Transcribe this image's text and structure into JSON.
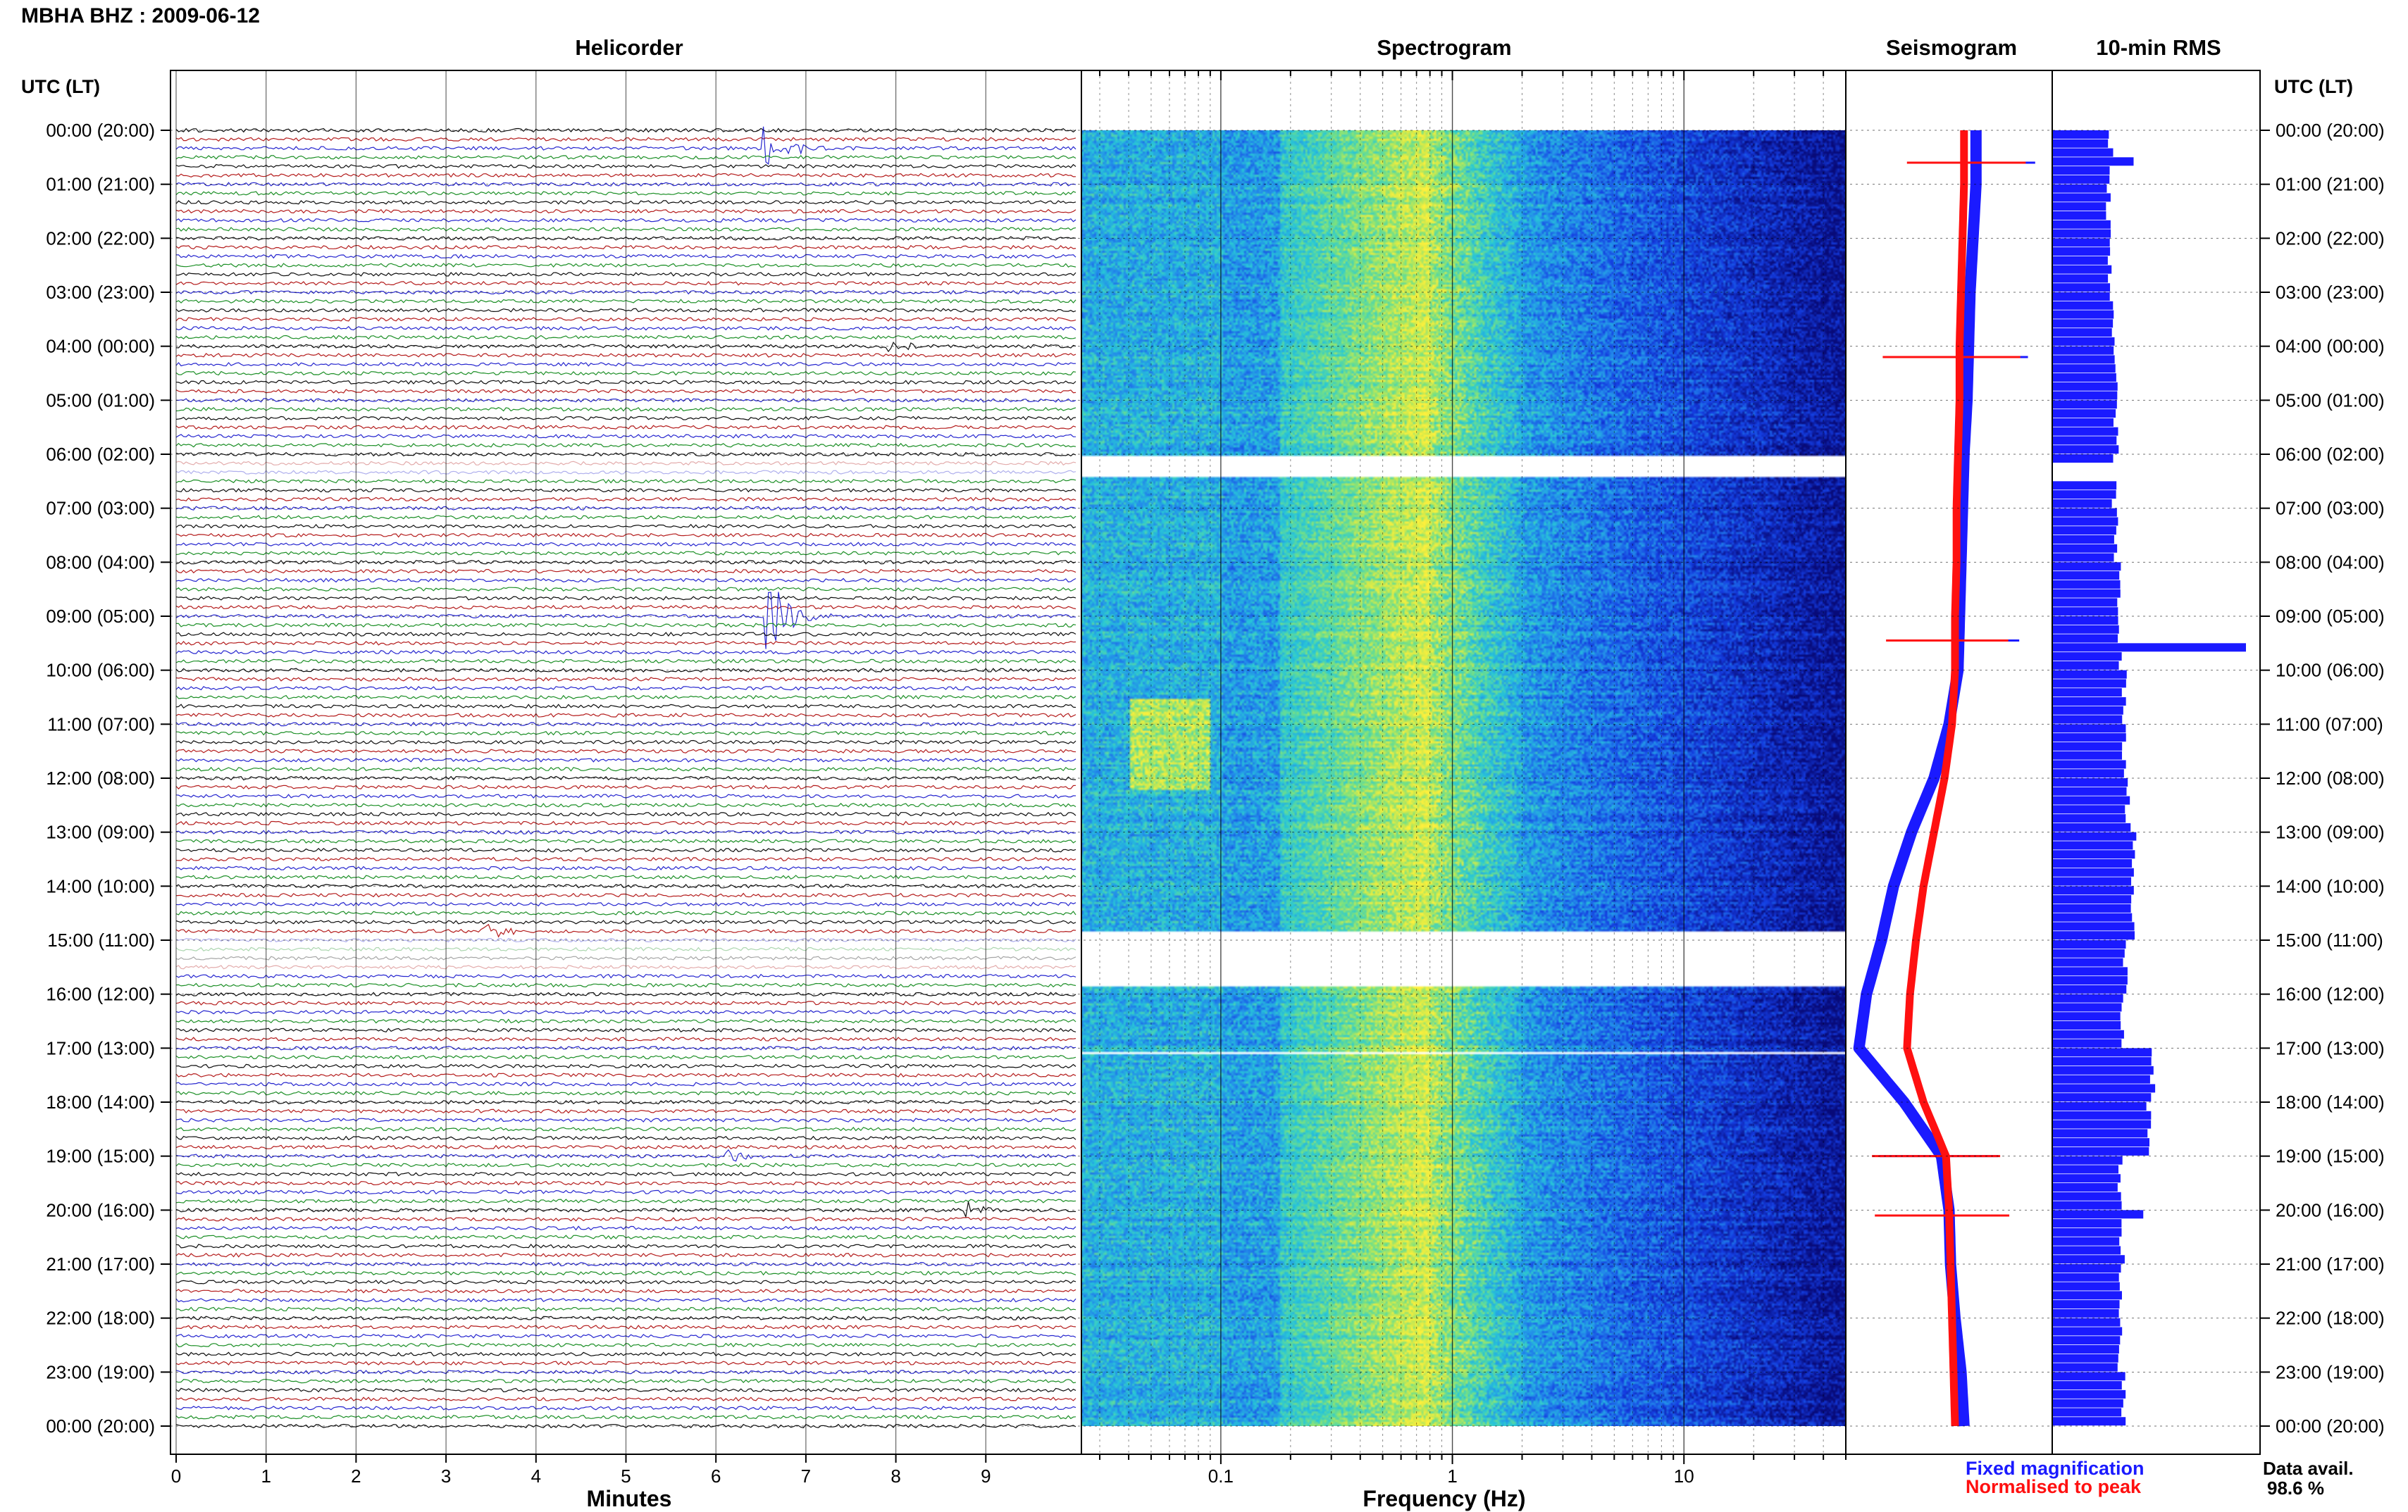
{
  "header": {
    "station_title": "MBHA BHZ : 2009-06-12",
    "time_axis_label_left": "UTC (LT)",
    "time_axis_label_right": "UTC (LT)"
  },
  "panels": {
    "helicorder": "Helicorder",
    "spectrogram": "Spectrogram",
    "seismogram": "Seismogram",
    "rms": "10-min RMS"
  },
  "axes": {
    "minutes_label": "Minutes",
    "frequency_label": "Frequency (Hz)"
  },
  "legend": {
    "fixed": "Fixed magnification",
    "normalised": "Normalised to peak",
    "fixed_color": "#1a1aff",
    "normalised_color": "#ff1010"
  },
  "availability": {
    "label": "Data avail.",
    "value": "98.6 %"
  },
  "chart_data": {
    "type": "helicorder-spectrogram-seismogram-rms",
    "time_labels": [
      "00:00 (20:00)",
      "01:00 (21:00)",
      "02:00 (22:00)",
      "03:00 (23:00)",
      "04:00 (00:00)",
      "05:00 (01:00)",
      "06:00 (02:00)",
      "07:00 (03:00)",
      "08:00 (04:00)",
      "09:00 (05:00)",
      "10:00 (06:00)",
      "11:00 (07:00)",
      "12:00 (08:00)",
      "13:00 (09:00)",
      "14:00 (10:00)",
      "15:00 (11:00)",
      "16:00 (12:00)",
      "17:00 (13:00)",
      "18:00 (14:00)",
      "19:00 (15:00)",
      "20:00 (16:00)",
      "21:00 (17:00)",
      "22:00 (18:00)",
      "23:00 (19:00)",
      "00:00 (20:00)"
    ],
    "helicorder": {
      "xlabel": "Minutes",
      "x_ticks": [
        0,
        1,
        2,
        3,
        4,
        5,
        6,
        7,
        8,
        9
      ],
      "xlim": [
        0,
        10
      ],
      "trace_colors": [
        "#000000",
        "#b01010",
        "#1a1acc",
        "#10891a"
      ],
      "events": [
        {
          "hour": 0.4,
          "minute": 6.6,
          "amplitude": 0.9,
          "color": "#10891a"
        },
        {
          "hour": 4.0,
          "minute": 8.0,
          "amplitude": 0.2,
          "color": "#000000"
        },
        {
          "hour": 9.0,
          "minute": 6.65,
          "amplitude": 1.6,
          "color": "#000000"
        },
        {
          "hour": 14.8,
          "minute": 3.5,
          "amplitude": 0.25,
          "color": "#000000"
        },
        {
          "hour": 19.0,
          "minute": 6.2,
          "amplitude": 0.2,
          "color": "#000000"
        },
        {
          "hour": 20.0,
          "minute": 8.8,
          "amplitude": 0.3,
          "color": "#000000"
        }
      ],
      "gaps_hours": [
        [
          6.1,
          6.35
        ],
        [
          15.0,
          15.5
        ]
      ]
    },
    "spectrogram": {
      "xlabel": "Frequency (Hz)",
      "scale": "log",
      "xlim": [
        0.025,
        50
      ],
      "x_tick_labels": [
        "0.1",
        "1",
        "10"
      ],
      "gaps_hours": [
        [
          6.0,
          6.4
        ],
        [
          14.8,
          15.85
        ],
        [
          17.05,
          17.1
        ]
      ],
      "peak_band_hz": [
        0.2,
        0.6
      ]
    },
    "seismogram": {
      "series": [
        {
          "name": "Fixed magnification",
          "color": "#1a1aff",
          "x_offset": [
            0.68,
            0.68,
            0.66,
            0.64,
            0.63,
            0.62,
            0.6,
            0.59,
            0.58,
            0.57,
            0.56,
            0.5,
            0.4,
            0.25,
            0.13,
            0.05,
            -0.05,
            -0.1,
            0.2,
            0.45,
            0.5,
            0.51,
            0.54,
            0.58,
            0.6
          ]
        },
        {
          "name": "Normalised to peak",
          "color": "#ff1010",
          "x_offset": [
            0.6,
            0.6,
            0.59,
            0.58,
            0.57,
            0.57,
            0.56,
            0.55,
            0.55,
            0.54,
            0.54,
            0.52,
            0.47,
            0.4,
            0.33,
            0.28,
            0.24,
            0.22,
            0.33,
            0.48,
            0.5,
            0.51,
            0.52,
            0.53,
            0.54
          ]
        }
      ],
      "spikes_hours": [
        0.6,
        4.2,
        9.45,
        19.0,
        20.1
      ]
    },
    "rms": {
      "interval_minutes": 10,
      "hourly_values": [
        0.3,
        0.29,
        0.3,
        0.31,
        0.33,
        0.33,
        0.32,
        0.33,
        0.34,
        0.35,
        0.37,
        0.37,
        0.39,
        0.42,
        0.42,
        0.38,
        0.36,
        0.52,
        0.5,
        0.35,
        0.36,
        0.35,
        0.35,
        0.37
      ],
      "spikes": [
        {
          "hour": 0.55,
          "value": 0.42
        },
        {
          "hour": 9.45,
          "value": 1.0
        },
        {
          "hour": 20.0,
          "value": 0.47
        }
      ]
    }
  }
}
